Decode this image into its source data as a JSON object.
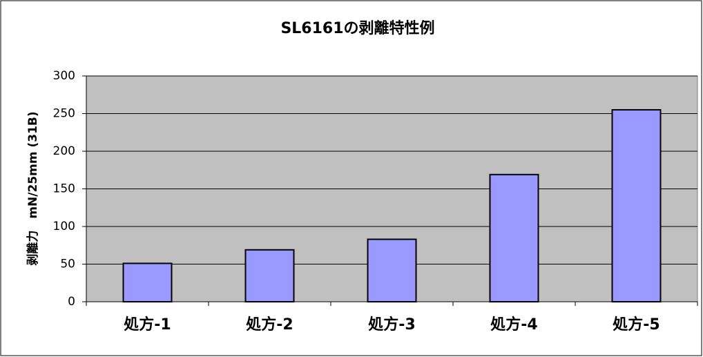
{
  "chart_data": {
    "type": "bar",
    "title": "SL6161の剥離特性例",
    "y_label": "剥離力　mN/25mm (31B)",
    "categories": [
      "処方-1",
      "処方-2",
      "処方-3",
      "処方-4",
      "処方-5"
    ],
    "values": [
      51,
      69,
      83,
      169,
      255
    ],
    "color": "#9999ff",
    "ylim": [
      0,
      300
    ],
    "yticks": [
      0,
      50,
      100,
      150,
      200,
      250,
      300
    ],
    "grid": true
  }
}
